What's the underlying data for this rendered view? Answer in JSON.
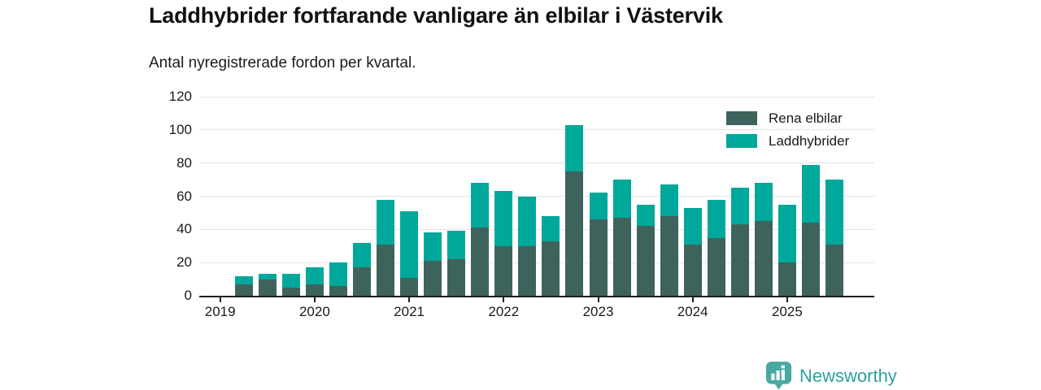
{
  "header": {
    "title": "Laddhybrider fortfarande vanligare än elbilar i Västervik",
    "subtitle": "Antal nyregistrerade fordon per kvartal."
  },
  "footer": {
    "brand": "Newsworthy",
    "logo_icon": "bar-chart-pin-icon"
  },
  "colors": {
    "rena_elbilar": "#3e635c",
    "laddhybrider": "#00a89b",
    "axis": "#1f1f1f",
    "grid": "#e3e3e3",
    "brand_teal": "#48a8a2",
    "brand_text": "#2f9e9e",
    "background": "#ffffff"
  },
  "chart_data": {
    "type": "bar",
    "stacked": true,
    "title": "Laddhybrider fortfarande vanligare än elbilar i Västervik",
    "subtitle": "Antal nyregistrerade fordon per kvartal.",
    "categories": [
      "2019 Q1",
      "2019 Q2",
      "2019 Q3",
      "2019 Q4",
      "2020 Q1",
      "2020 Q2",
      "2020 Q3",
      "2020 Q4",
      "2021 Q1",
      "2021 Q2",
      "2021 Q3",
      "2021 Q4",
      "2022 Q1",
      "2022 Q2",
      "2022 Q3",
      "2022 Q4",
      "2023 Q1",
      "2023 Q2",
      "2023 Q3",
      "2023 Q4",
      "2024 Q1",
      "2024 Q2",
      "2024 Q3",
      "2024 Q4",
      "2025 Q1",
      "2025 Q2",
      "2025 Q3"
    ],
    "series": [
      {
        "name": "Rena elbilar",
        "color": "#3e635c",
        "values": [
          0,
          7,
          10,
          5,
          7,
          6,
          17,
          31,
          11,
          21,
          22,
          41,
          30,
          30,
          33,
          75,
          46,
          47,
          42,
          48,
          31,
          35,
          43,
          45,
          20,
          44,
          31
        ]
      },
      {
        "name": "Laddhybrider",
        "color": "#00a89b",
        "values": [
          0,
          5,
          3,
          8,
          10,
          14,
          15,
          27,
          40,
          17,
          17,
          27,
          33,
          30,
          15,
          28,
          16,
          23,
          13,
          19,
          22,
          23,
          22,
          23,
          35,
          35,
          39
        ]
      }
    ],
    "xtick_labels": [
      "2019",
      "2020",
      "2021",
      "2022",
      "2023",
      "2024",
      "2025"
    ],
    "xlabel": "",
    "ylabel": "",
    "ylim": [
      0,
      120
    ],
    "yticks": [
      0,
      20,
      40,
      60,
      80,
      100,
      120
    ],
    "grid": true,
    "legend_position": "top-right"
  }
}
